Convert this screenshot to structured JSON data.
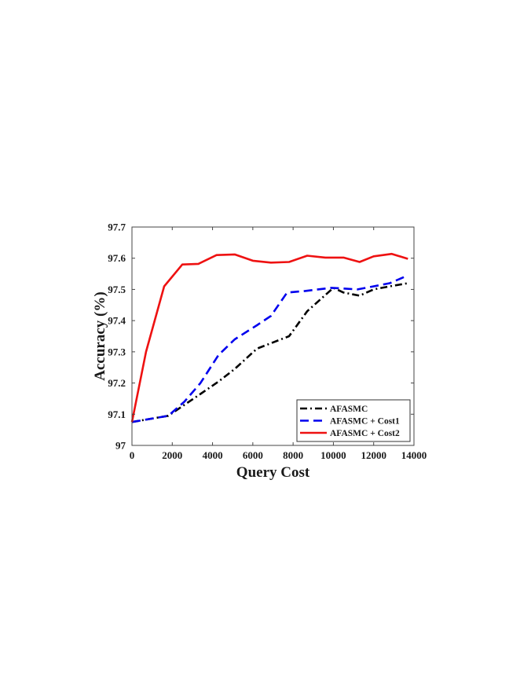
{
  "chart_data": {
    "type": "line",
    "title": "",
    "xlabel": "Query Cost",
    "ylabel": "Accuracy (%)",
    "xlim": [
      0,
      14000
    ],
    "ylim": [
      97,
      97.7
    ],
    "xticks": [
      0,
      2000,
      4000,
      6000,
      8000,
      10000,
      12000,
      14000
    ],
    "yticks": [
      97,
      97.1,
      97.2,
      97.3,
      97.4,
      97.5,
      97.6,
      97.7
    ],
    "x_tick_labels": [
      "0",
      "2000",
      "4000",
      "6000",
      "8000",
      "10000",
      "12000",
      "14000"
    ],
    "y_tick_labels": [
      "97",
      "97.1",
      "97.2",
      "97.3",
      "97.4",
      "97.5",
      "97.6",
      "97.7"
    ],
    "grid": false,
    "legend_position": "bottom-right",
    "series": [
      {
        "name": "AFASMC",
        "color": "#000000",
        "style": "dash-dot",
        "x": [
          0,
          1800,
          2600,
          3400,
          4300,
          5100,
          6200,
          7000,
          7800,
          8700,
          10000,
          10500,
          11300,
          12000,
          12800,
          13700
        ],
        "y": [
          97.075,
          97.095,
          97.13,
          97.165,
          97.205,
          97.245,
          97.31,
          97.33,
          97.35,
          97.43,
          97.505,
          97.49,
          97.48,
          97.5,
          97.51,
          97.52
        ]
      },
      {
        "name": "AFASMC + Cost1",
        "color": "#0000ee",
        "style": "dashed",
        "x": [
          0,
          1800,
          2600,
          3400,
          4300,
          5100,
          6200,
          6900,
          7700,
          8600,
          9900,
          11200,
          12000,
          12800,
          13700
        ],
        "y": [
          97.075,
          97.095,
          97.14,
          97.2,
          97.29,
          97.34,
          97.385,
          97.415,
          97.49,
          97.495,
          97.505,
          97.5,
          97.51,
          97.52,
          97.545
        ]
      },
      {
        "name": "AFASMC + Cost2",
        "color": "#ee1111",
        "style": "solid",
        "x": [
          0,
          700,
          1600,
          2500,
          3300,
          4200,
          5100,
          6000,
          6900,
          7800,
          8700,
          9600,
          10500,
          11300,
          12000,
          12900,
          13700
        ],
        "y": [
          97.075,
          97.3,
          97.51,
          97.58,
          97.582,
          97.61,
          97.612,
          97.592,
          97.586,
          97.588,
          97.608,
          97.602,
          97.602,
          97.588,
          97.606,
          97.614,
          97.598
        ]
      }
    ]
  }
}
